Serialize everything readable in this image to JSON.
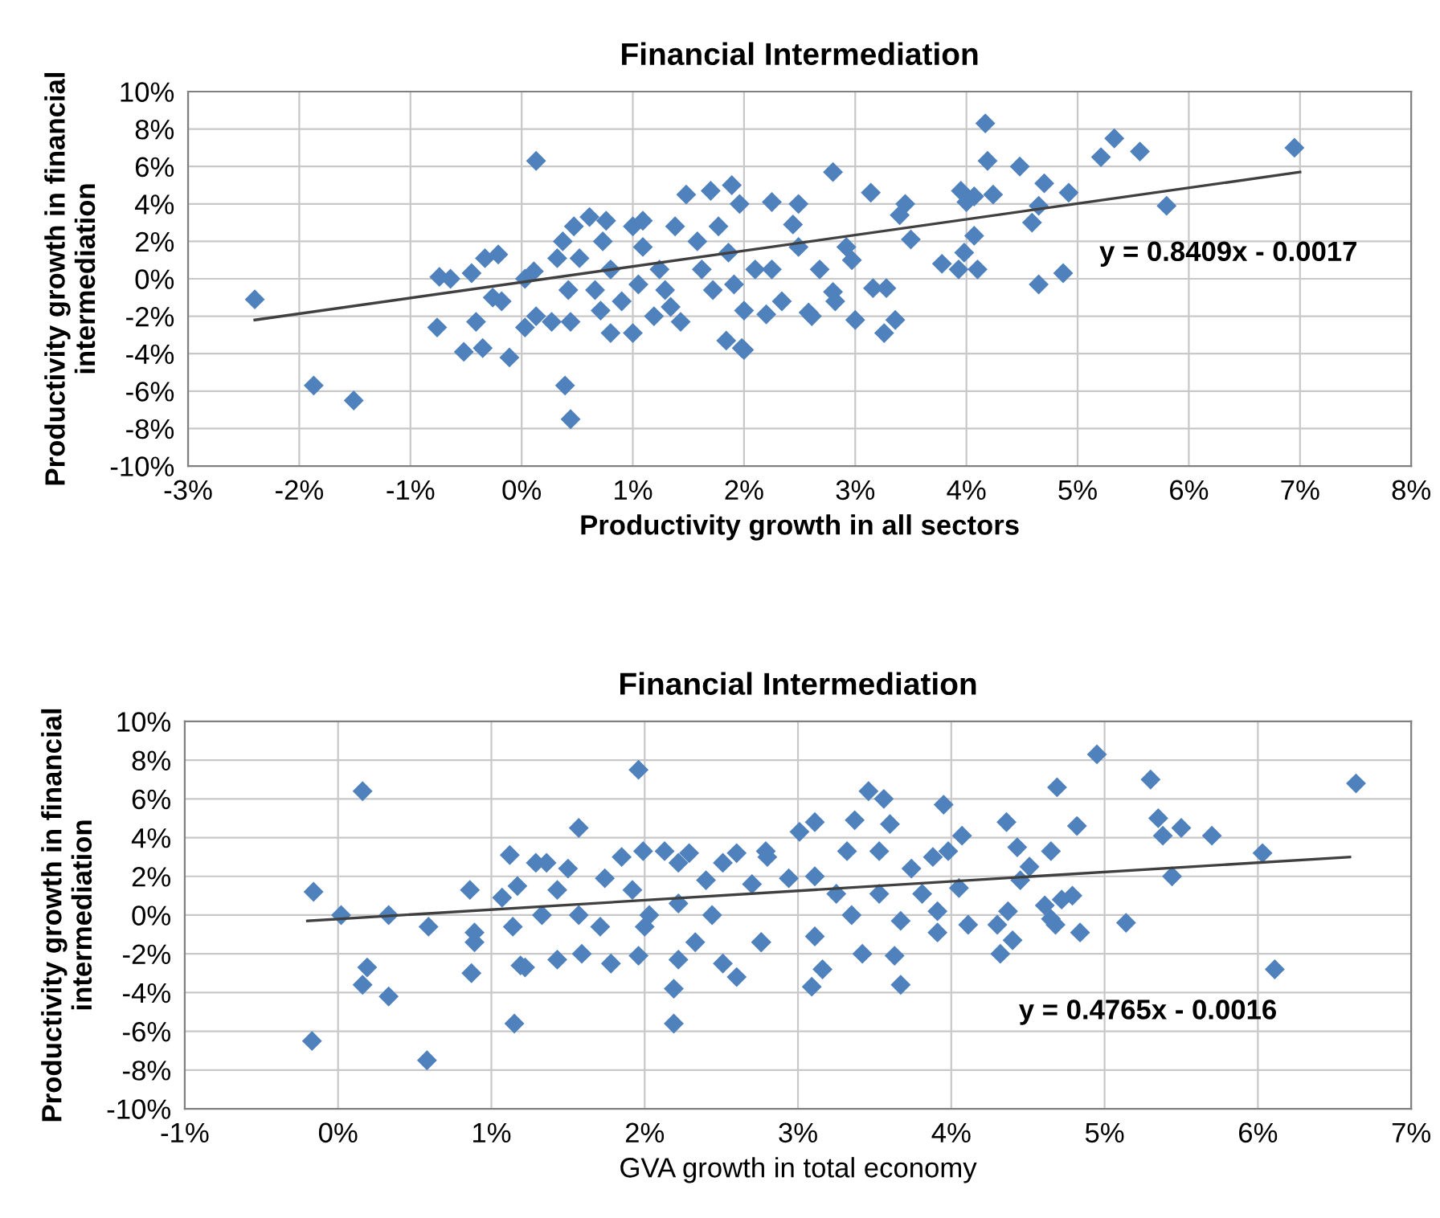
{
  "chart_data": [
    {
      "type": "scatter",
      "title": "Financial Intermediation",
      "xlabel": "Productivity growth in all sectors",
      "ylabel": "Productivity growth in financial\nintermediation",
      "annotations": [
        "y = 0.8409x - 0.0017"
      ],
      "xlim": [
        -3,
        8
      ],
      "xticks": [
        {
          "value": -3,
          "label": "-3%"
        },
        {
          "value": -2,
          "label": "-2%"
        },
        {
          "value": -1,
          "label": "-1%"
        },
        {
          "value": 0,
          "label": "0%"
        },
        {
          "value": 1,
          "label": "1%"
        },
        {
          "value": 2,
          "label": "2%"
        },
        {
          "value": 3,
          "label": "3%"
        },
        {
          "value": 4,
          "label": "4%"
        },
        {
          "value": 5,
          "label": "5%"
        },
        {
          "value": 6,
          "label": "6%"
        },
        {
          "value": 7,
          "label": "7%"
        },
        {
          "value": 8,
          "label": "8%"
        }
      ],
      "ylim": [
        -10,
        10
      ],
      "yticks": [
        {
          "value": -10,
          "label": "-10%"
        },
        {
          "value": -8,
          "label": "-8%"
        },
        {
          "value": -6,
          "label": "-6%"
        },
        {
          "value": -4,
          "label": "-4%"
        },
        {
          "value": -2,
          "label": "-2%"
        },
        {
          "value": 0,
          "label": "0%"
        },
        {
          "value": 2,
          "label": "2%"
        },
        {
          "value": 4,
          "label": "4%"
        },
        {
          "value": 6,
          "label": "6%"
        },
        {
          "value": 8,
          "label": "8%"
        },
        {
          "value": 10,
          "label": "10%"
        }
      ],
      "grid": true,
      "legend": false,
      "series": [
        {
          "color": "#4f81bd",
          "marker": "diamond",
          "x": [
            -2.4,
            -1.87,
            -1.51,
            0.13,
            0.39,
            0.44,
            -0.76,
            -0.74,
            -0.64,
            -0.45,
            -0.33,
            -0.21,
            -0.26,
            -0.18,
            -0.41,
            -0.52,
            -0.35,
            -0.11,
            0.03,
            0.11,
            0.03,
            0.13,
            0.27,
            0.32,
            0.44,
            0.47,
            0.61,
            0.73,
            0.8,
            1.0,
            1.09,
            1.0,
            1.19,
            1.43,
            1.48,
            1.7,
            1.89,
            1.84,
            1.98,
            1.96,
            0.52,
            0.66,
            0.8,
            0.9,
            1.09,
            1.24,
            1.29,
            1.38,
            1.58,
            1.62,
            1.77,
            1.86,
            1.91,
            2.1,
            2.0,
            0.71,
            1.05,
            1.34,
            1.72,
            0.42,
            0.37,
            0.76,
            4.17,
            4.19,
            4.48,
            4.7,
            4.92,
            4.65,
            4.59,
            5.21,
            5.33,
            5.56,
            5.8,
            6.95,
            3.95,
            4.07,
            4.24,
            4.0,
            4.07,
            3.78,
            3.93,
            3.98,
            4.1,
            4.65,
            4.87,
            2.8,
            3.14,
            3.45,
            3.4,
            3.5,
            3.16,
            3.28,
            3.26,
            3.36,
            3.0,
            2.58,
            2.61,
            2.8,
            2.82,
            2.97,
            2.68,
            2.92,
            2.49,
            2.25,
            2.44,
            2.34,
            2.2,
            2.0,
            2.49,
            2.25
          ],
          "values": [
            -1.1,
            -5.7,
            -6.5,
            6.3,
            -5.7,
            -7.5,
            -2.6,
            0.1,
            0.0,
            0.3,
            1.1,
            1.3,
            -1.0,
            -1.2,
            -2.3,
            -3.9,
            -3.7,
            -4.2,
            0.0,
            0.4,
            -2.6,
            -2.0,
            -2.3,
            1.1,
            -2.3,
            2.8,
            3.3,
            2.0,
            -2.9,
            2.8,
            3.1,
            -2.9,
            -2.0,
            -2.3,
            4.5,
            4.7,
            5.0,
            -3.3,
            -3.7,
            4.0,
            1.1,
            -0.6,
            0.5,
            -1.2,
            1.7,
            0.5,
            -0.6,
            2.8,
            2.0,
            0.5,
            2.8,
            1.4,
            -0.3,
            0.5,
            -1.7,
            -1.7,
            -0.3,
            -1.5,
            -0.6,
            -0.6,
            2.0,
            3.1,
            8.3,
            6.3,
            6.0,
            5.1,
            4.6,
            3.9,
            3.0,
            6.5,
            7.5,
            6.8,
            3.9,
            7.0,
            4.7,
            4.4,
            4.5,
            4.1,
            2.3,
            0.8,
            0.5,
            1.4,
            0.5,
            -0.3,
            0.3,
            5.7,
            4.6,
            4.0,
            3.4,
            2.1,
            -0.5,
            -0.5,
            -2.9,
            -2.2,
            -2.2,
            -1.8,
            -2.0,
            -0.7,
            -1.2,
            1.0,
            0.5,
            1.7,
            4.0,
            4.1,
            2.9,
            -1.2,
            -1.9,
            -3.8,
            1.7,
            0.5
          ]
        },
        {
          "type": "line",
          "marker": "none",
          "color": "#404040",
          "x": [
            -2.4,
            7.0
          ],
          "values": [
            -2.2,
            5.7
          ]
        }
      ]
    },
    {
      "type": "scatter",
      "title": "Financial Intermediation",
      "xlabel": "GVA growth in total economy",
      "ylabel": "Productivity growth in financial\nintermediation",
      "annotations": [
        "y = 0.4765x - 0.0016"
      ],
      "xlim": [
        -1,
        7
      ],
      "xticks": [
        {
          "value": -1,
          "label": "-1%"
        },
        {
          "value": 0,
          "label": "0%"
        },
        {
          "value": 1,
          "label": "1%"
        },
        {
          "value": 2,
          "label": "2%"
        },
        {
          "value": 3,
          "label": "3%"
        },
        {
          "value": 4,
          "label": "4%"
        },
        {
          "value": 5,
          "label": "5%"
        },
        {
          "value": 6,
          "label": "6%"
        },
        {
          "value": 7,
          "label": "7%"
        }
      ],
      "ylim": [
        -10,
        10
      ],
      "yticks": [
        {
          "value": -10,
          "label": "-10%"
        },
        {
          "value": -8,
          "label": "-8%"
        },
        {
          "value": -6,
          "label": "-6%"
        },
        {
          "value": -4,
          "label": "-4%"
        },
        {
          "value": -2,
          "label": "-2%"
        },
        {
          "value": 0,
          "label": "0%"
        },
        {
          "value": 2,
          "label": "2%"
        },
        {
          "value": 4,
          "label": "4%"
        },
        {
          "value": 6,
          "label": "6%"
        },
        {
          "value": 8,
          "label": "8%"
        },
        {
          "value": 10,
          "label": "10%"
        }
      ],
      "grid": true,
      "legend": false,
      "series": [
        {
          "color": "#4f81bd",
          "marker": "diamond",
          "x": [
            -0.16,
            -0.17,
            0.02,
            0.16,
            0.19,
            0.16,
            0.33,
            0.33,
            0.59,
            0.58,
            0.86,
            0.89,
            0.89,
            0.87,
            1.12,
            1.07,
            1.14,
            1.15,
            1.17,
            1.19,
            1.22,
            1.57,
            1.96,
            1.43,
            1.59,
            1.78,
            1.96,
            2.19,
            2.19,
            1.29,
            1.36,
            1.5,
            1.43,
            1.33,
            1.57,
            1.71,
            1.74,
            1.85,
            1.99,
            2.13,
            1.92,
            2.03,
            2.0,
            2.22,
            2.29,
            2.4,
            2.22,
            2.44,
            2.51,
            2.6,
            2.7,
            2.22,
            2.33,
            2.51,
            2.6,
            2.76,
            2.79,
            4.95,
            4.69,
            5.3,
            6.64,
            6.03,
            6.11,
            5.35,
            5.38,
            5.5,
            5.7,
            5.44,
            5.14,
            4.84,
            4.82,
            4.65,
            4.51,
            4.45,
            4.43,
            4.36,
            4.72,
            4.79,
            4.61,
            4.68,
            4.65,
            4.37,
            4.3,
            4.4,
            4.32,
            4.11,
            4.05,
            4.07,
            3.95,
            3.98,
            3.88,
            3.91,
            3.91,
            3.67,
            3.63,
            3.56,
            3.46,
            3.37,
            3.11,
            3.01,
            3.11,
            3.11,
            3.16,
            3.09,
            2.94,
            2.8,
            2.76,
            3.42,
            3.53,
            3.6,
            3.74,
            3.81,
            3.32,
            3.25,
            3.35,
            3.53,
            3.67
          ],
          "values": [
            1.2,
            -6.5,
            0.0,
            6.4,
            -2.7,
            -3.6,
            0.0,
            -4.2,
            -0.6,
            -7.5,
            1.3,
            -0.9,
            -1.4,
            -3.0,
            3.1,
            0.9,
            -0.6,
            -5.6,
            1.5,
            -2.6,
            -2.7,
            4.5,
            7.5,
            -2.3,
            -2.0,
            -2.5,
            -2.1,
            -3.8,
            -5.6,
            2.7,
            2.7,
            2.4,
            1.3,
            0.0,
            0.0,
            -0.6,
            1.9,
            3.0,
            3.3,
            3.3,
            1.3,
            0.0,
            -0.6,
            2.7,
            3.2,
            1.8,
            0.6,
            0.0,
            2.7,
            3.2,
            1.6,
            -2.3,
            -1.4,
            -2.5,
            -3.2,
            -1.4,
            3.3,
            8.3,
            6.6,
            7.0,
            6.8,
            3.2,
            -2.8,
            5.0,
            4.1,
            4.5,
            4.1,
            2.0,
            -0.4,
            -0.9,
            4.6,
            3.3,
            2.5,
            1.8,
            3.5,
            4.8,
            0.8,
            1.0,
            0.5,
            -0.5,
            -0.2,
            0.2,
            -0.5,
            -1.3,
            -2.0,
            -0.5,
            1.4,
            4.1,
            5.7,
            3.3,
            3.0,
            -0.9,
            0.2,
            -3.6,
            -2.1,
            6.0,
            6.4,
            4.9,
            4.8,
            4.3,
            2.0,
            -1.1,
            -2.8,
            -3.7,
            1.9,
            3.0,
            -1.4,
            -2.0,
            3.3,
            4.7,
            2.4,
            1.1,
            3.3,
            1.1,
            0.0,
            1.1,
            -0.3
          ]
        },
        {
          "type": "line",
          "marker": "none",
          "color": "#404040",
          "x": [
            -0.2,
            6.6
          ],
          "values": [
            -0.3,
            3.0
          ]
        }
      ]
    }
  ]
}
